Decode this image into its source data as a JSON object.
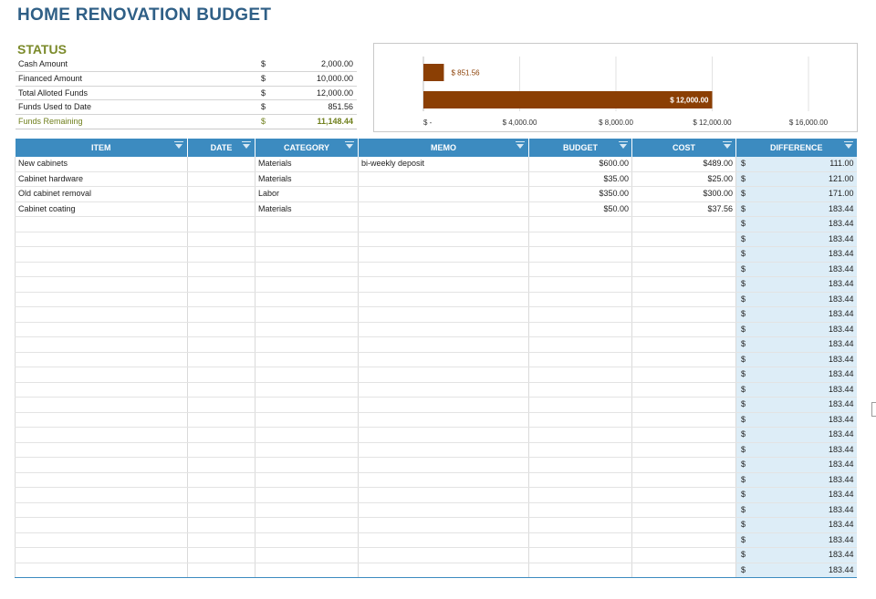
{
  "title": "HOME RENOVATION BUDGET",
  "status": {
    "heading": "STATUS",
    "rows": [
      {
        "label": "Cash Amount",
        "currency": "$",
        "value": "2,000.00"
      },
      {
        "label": "Financed Amount",
        "currency": "$",
        "value": "10,000.00"
      },
      {
        "label": "Total Alloted Funds",
        "currency": "$",
        "value": "12,000.00"
      },
      {
        "label": "Funds Used to Date",
        "currency": "$",
        "value": "851.56"
      },
      {
        "label": "Funds Remaining",
        "currency": "$",
        "value": "11,148.44"
      }
    ]
  },
  "colors": {
    "bar": "#8b3f04",
    "header": "#3c8bc0",
    "diff_bg": "#ddedf7",
    "remaining_text": "#6f7f1c",
    "title": "#2f5f86"
  },
  "chart_data": {
    "type": "bar",
    "orientation": "horizontal",
    "values": [
      851.56,
      12000
    ],
    "data_labels": [
      "$ 851.56",
      "$ 12,000.00"
    ],
    "xlim": [
      0,
      16000
    ],
    "x_ticks": [
      0,
      4000,
      8000,
      12000,
      16000
    ],
    "x_tick_labels": [
      "$ -",
      "$ 4,000.00",
      "$ 8,000.00",
      "$ 12,000.00",
      "$ 16,000.00"
    ],
    "grid": true,
    "bar_color": "#8b3f04"
  },
  "table": {
    "columns": [
      "ITEM",
      "DATE",
      "CATEGORY",
      "MEMO",
      "BUDGET",
      "COST",
      "DIFFERENCE"
    ],
    "rows": [
      {
        "item": "New cabinets",
        "date": "",
        "category": "Materials",
        "memo": "bi-weekly deposit",
        "budget": "$600.00",
        "cost": "$489.00",
        "diff_currency": "$",
        "difference": "111.00"
      },
      {
        "item": "Cabinet hardware",
        "date": "",
        "category": "Materials",
        "memo": "",
        "budget": "$35.00",
        "cost": "$25.00",
        "diff_currency": "$",
        "difference": "121.00"
      },
      {
        "item": "Old cabinet removal",
        "date": "",
        "category": "Labor",
        "memo": "",
        "budget": "$350.00",
        "cost": "$300.00",
        "diff_currency": "$",
        "difference": "171.00"
      },
      {
        "item": "Cabinet coating",
        "date": "",
        "category": "Materials",
        "memo": "",
        "budget": "$50.00",
        "cost": "$37.56",
        "diff_currency": "$",
        "difference": "183.44"
      }
    ],
    "empty_rows": 24,
    "empty_diff_currency": "$",
    "empty_diff_value": "183.44"
  }
}
